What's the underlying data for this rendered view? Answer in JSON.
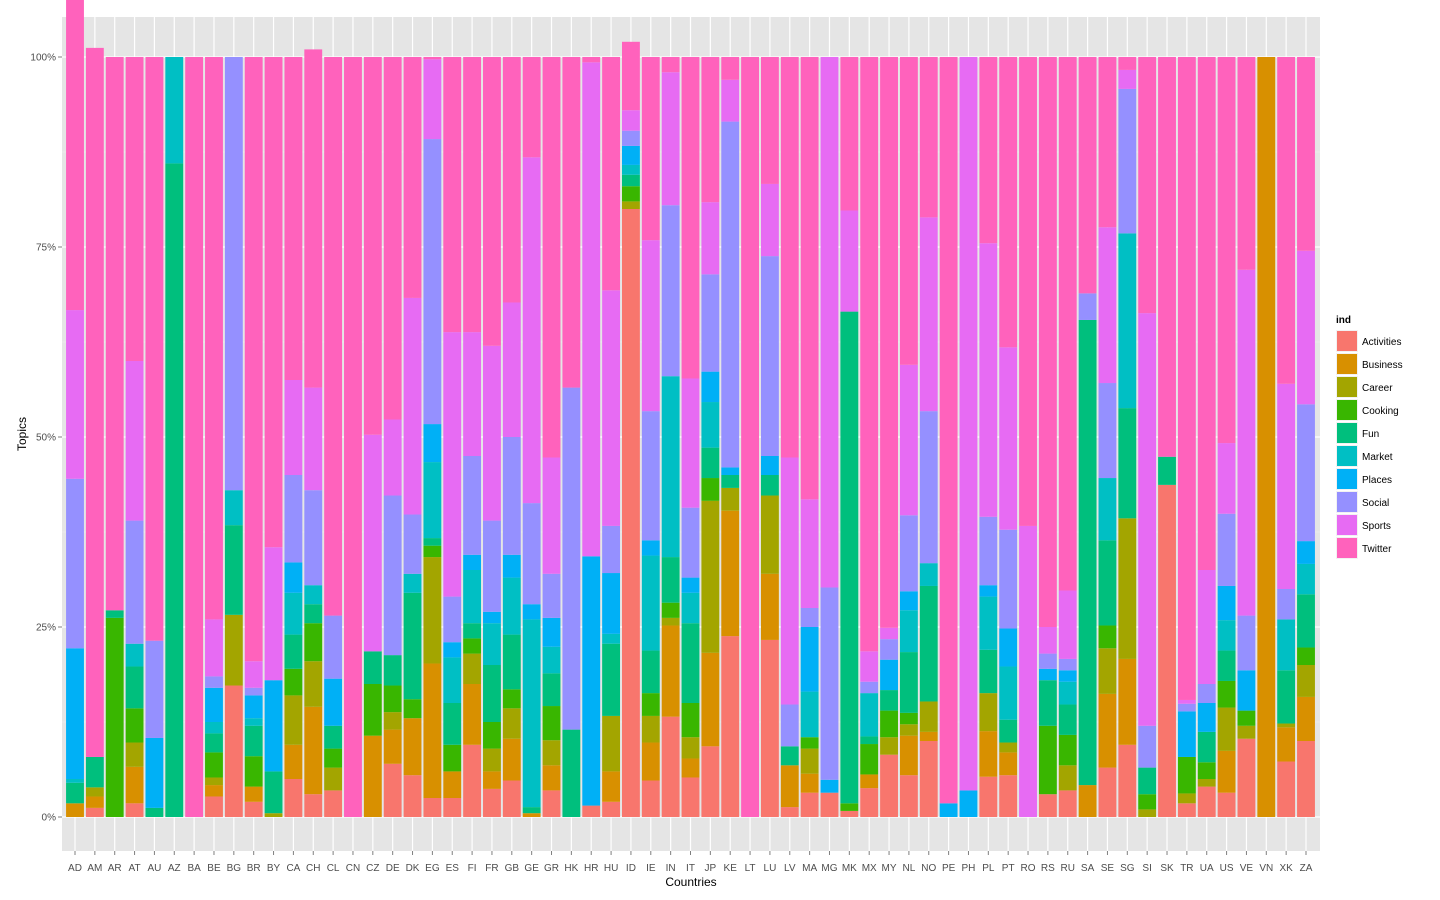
{
  "chart_data": {
    "type": "bar",
    "stacked": true,
    "normalized": true,
    "xlabel": "Countries",
    "ylabel": "Topics",
    "ylim": [
      0,
      1
    ],
    "yticks": [
      {
        "value": 0,
        "label": "0%"
      },
      {
        "value": 0.25,
        "label": "25%"
      },
      {
        "value": 0.5,
        "label": "50%"
      },
      {
        "value": 0.75,
        "label": "75%"
      },
      {
        "value": 1,
        "label": "100%"
      }
    ],
    "grid": true,
    "legend": {
      "title": "ind",
      "position": "right"
    },
    "categories": [
      "AD",
      "AM",
      "AR",
      "AT",
      "AU",
      "AZ",
      "BA",
      "BE",
      "BG",
      "BR",
      "BY",
      "CA",
      "CH",
      "CL",
      "CN",
      "CZ",
      "DE",
      "DK",
      "EG",
      "ES",
      "FI",
      "FR",
      "GB",
      "GE",
      "GR",
      "HK",
      "HR",
      "HU",
      "ID",
      "IE",
      "IN",
      "IT",
      "JP",
      "KE",
      "LT",
      "LU",
      "LV",
      "MA",
      "MG",
      "MK",
      "MX",
      "MY",
      "NL",
      "NO",
      "PE",
      "PH",
      "PL",
      "PT",
      "RO",
      "RS",
      "RU",
      "SA",
      "SE",
      "SG",
      "SI",
      "SK",
      "TR",
      "UA",
      "US",
      "VE",
      "VN",
      "XK",
      "ZA"
    ],
    "series": [
      {
        "name": "Activities",
        "color": "#F8766D",
        "values": [
          0.0,
          0.012,
          0.0,
          0.018,
          0.0,
          0.0,
          0.0,
          0.027,
          0.173,
          0.02,
          0.0,
          0.05,
          0.03,
          0.035,
          0.0,
          0.0,
          0.07,
          0.055,
          0.025,
          0.025,
          0.095,
          0.037,
          0.048,
          0.0,
          0.035,
          0.0,
          0.015,
          0.02,
          0.8,
          0.048,
          0.132,
          0.052,
          0.093,
          0.238,
          0.0,
          0.233,
          0.013,
          0.032,
          0.032,
          0.008,
          0.038,
          0.082,
          0.055,
          0.1,
          0.0,
          0.0,
          0.053,
          0.055,
          0.0,
          0.03,
          0.035,
          0.0,
          0.065,
          0.095,
          0.0,
          0.437,
          0.018,
          0.04,
          0.032,
          0.103,
          0.0,
          0.073,
          0.1
        ]
      },
      {
        "name": "Business",
        "color": "#D89000",
        "values": [
          0.018,
          0.015,
          0.0,
          0.048,
          0.0,
          0.0,
          0.0,
          0.015,
          0.0,
          0.02,
          0.0,
          0.045,
          0.115,
          0.0,
          0.0,
          0.107,
          0.045,
          0.075,
          0.177,
          0.035,
          0.08,
          0.023,
          0.055,
          0.005,
          0.033,
          0.0,
          0.0,
          0.04,
          0.0,
          0.05,
          0.12,
          0.025,
          0.123,
          0.165,
          0.0,
          0.087,
          0.055,
          0.025,
          0.0,
          0.0,
          0.018,
          0.0,
          0.052,
          0.012,
          0.0,
          0.0,
          0.06,
          0.03,
          0.0,
          0.0,
          0.0,
          0.042,
          0.097,
          0.113,
          0.0,
          0.0,
          0.0,
          0.0,
          0.055,
          0.0,
          1.0,
          0.045,
          0.058
        ]
      },
      {
        "name": "Career",
        "color": "#A3A500",
        "values": [
          0.0,
          0.012,
          0.0,
          0.032,
          0.0,
          0.0,
          0.0,
          0.01,
          0.093,
          0.0,
          0.005,
          0.065,
          0.06,
          0.03,
          0.0,
          0.0,
          0.023,
          0.0,
          0.14,
          0.0,
          0.04,
          0.03,
          0.04,
          0.0,
          0.033,
          0.0,
          0.0,
          0.073,
          0.01,
          0.035,
          0.01,
          0.028,
          0.2,
          0.03,
          0.0,
          0.103,
          0.0,
          0.033,
          0.0,
          0.0,
          0.0,
          0.023,
          0.015,
          0.04,
          0.0,
          0.0,
          0.05,
          0.013,
          0.0,
          0.0,
          0.033,
          0.0,
          0.06,
          0.185,
          0.01,
          0.0,
          0.013,
          0.01,
          0.057,
          0.017,
          0.0,
          0.005,
          0.042
        ]
      },
      {
        "name": "Cooking",
        "color": "#39B600",
        "values": [
          0.0,
          0.0,
          0.262,
          0.045,
          0.0,
          0.0,
          0.0,
          0.033,
          0.0,
          0.04,
          0.0,
          0.035,
          0.05,
          0.025,
          0.0,
          0.068,
          0.035,
          0.025,
          0.015,
          0.035,
          0.02,
          0.035,
          0.025,
          0.0,
          0.045,
          0.0,
          0.0,
          0.0,
          0.02,
          0.03,
          0.02,
          0.045,
          0.03,
          0.0,
          0.0,
          0.0,
          0.0,
          0.015,
          0.0,
          0.01,
          0.04,
          0.035,
          0.015,
          0.0,
          0.0,
          0.0,
          0.0,
          0.0,
          0.0,
          0.09,
          0.04,
          0.0,
          0.03,
          0.0,
          0.02,
          0.0,
          0.048,
          0.022,
          0.035,
          0.02,
          0.0,
          0.0,
          0.023
        ]
      },
      {
        "name": "Fun",
        "color": "#00BF7D",
        "values": [
          0.027,
          0.04,
          0.01,
          0.055,
          0.012,
          0.86,
          0.0,
          0.025,
          0.118,
          0.04,
          0.055,
          0.045,
          0.025,
          0.03,
          0.0,
          0.043,
          0.04,
          0.14,
          0.01,
          0.055,
          0.02,
          0.075,
          0.072,
          0.008,
          0.043,
          0.115,
          0.0,
          0.095,
          0.015,
          0.056,
          0.06,
          0.105,
          0.04,
          0.017,
          0.0,
          0.027,
          0.025,
          0.0,
          0.0,
          0.647,
          0.01,
          0.027,
          0.08,
          0.152,
          0.0,
          0.0,
          0.057,
          0.03,
          0.0,
          0.06,
          0.04,
          0.612,
          0.112,
          0.145,
          0.035,
          0.037,
          0.0,
          0.04,
          0.04,
          0.0,
          0.0,
          0.07,
          0.07
        ]
      },
      {
        "name": "Market",
        "color": "#00BFC4",
        "values": [
          0.005,
          0.0,
          0.0,
          0.03,
          0.0,
          0.14,
          0.0,
          0.015,
          0.046,
          0.01,
          0.0,
          0.055,
          0.025,
          0.0,
          0.0,
          0.0,
          0.0,
          0.025,
          0.1,
          0.06,
          0.07,
          0.055,
          0.075,
          0.247,
          0.035,
          0.0,
          0.0,
          0.013,
          0.013,
          0.125,
          0.238,
          0.04,
          0.06,
          0.0,
          0.0,
          0.0,
          0.0,
          0.06,
          0.0,
          0.0,
          0.057,
          0.0,
          0.055,
          0.03,
          0.0,
          0.0,
          0.07,
          0.07,
          0.0,
          0.0,
          0.03,
          0.0,
          0.082,
          0.23,
          0.0,
          0.0,
          0.0,
          0.0,
          0.04,
          0.0,
          0.0,
          0.067,
          0.04
        ]
      },
      {
        "name": "Places",
        "color": "#00B0F6",
        "values": [
          0.172,
          0.0,
          0.0,
          0.0,
          0.092,
          0.0,
          0.0,
          0.045,
          0.0,
          0.03,
          0.12,
          0.04,
          0.0,
          0.062,
          0.0,
          0.0,
          0.0,
          0.0,
          0.05,
          0.02,
          0.02,
          0.015,
          0.03,
          0.02,
          0.038,
          0.0,
          0.328,
          0.08,
          0.025,
          0.02,
          0.0,
          0.02,
          0.04,
          0.01,
          0.0,
          0.025,
          0.0,
          0.085,
          0.017,
          0.0,
          0.0,
          0.04,
          0.025,
          0.0,
          0.018,
          0.035,
          0.015,
          0.05,
          0.0,
          0.015,
          0.015,
          0.0,
          0.0,
          0.0,
          0.0,
          0.0,
          0.06,
          0.038,
          0.045,
          0.053,
          0.0,
          0.0,
          0.03
        ]
      },
      {
        "name": "Social",
        "color": "#9590FF",
        "values": [
          0.223,
          0.0,
          0.0,
          0.162,
          0.128,
          0.0,
          0.0,
          0.015,
          0.57,
          0.01,
          0.0,
          0.115,
          0.125,
          0.083,
          0.0,
          0.0,
          0.21,
          0.078,
          0.375,
          0.06,
          0.13,
          0.12,
          0.155,
          0.133,
          0.058,
          0.45,
          0.0,
          0.062,
          0.02,
          0.17,
          0.225,
          0.092,
          0.128,
          0.455,
          0.0,
          0.263,
          0.055,
          0.025,
          0.253,
          0.0,
          0.015,
          0.027,
          0.1,
          0.2,
          0.0,
          0.0,
          0.09,
          0.13,
          0.0,
          0.02,
          0.015,
          0.035,
          0.125,
          0.19,
          0.055,
          0.0,
          0.01,
          0.025,
          0.095,
          0.072,
          0.0,
          0.04,
          0.18
        ]
      },
      {
        "name": "Sports",
        "color": "#E76BF3",
        "values": [
          0.222,
          0.0,
          0.0,
          0.21,
          0.0,
          0.0,
          0.0,
          0.075,
          0.0,
          0.035,
          0.175,
          0.125,
          0.135,
          0.0,
          0.0,
          0.285,
          0.1,
          0.285,
          0.105,
          0.348,
          0.163,
          0.23,
          0.177,
          0.455,
          0.153,
          0.0,
          0.65,
          0.31,
          0.027,
          0.225,
          0.175,
          0.17,
          0.095,
          0.055,
          0.0,
          0.095,
          0.325,
          0.143,
          0.698,
          0.133,
          0.04,
          0.015,
          0.198,
          0.255,
          0.0,
          0.965,
          0.36,
          0.24,
          0.383,
          0.035,
          0.09,
          0.0,
          0.205,
          0.025,
          0.543,
          0.0,
          0.005,
          0.15,
          0.093,
          0.455,
          0.0,
          0.27,
          0.202
        ]
      },
      {
        "name": "Twitter",
        "color": "#FF62BC",
        "values": [
          0.553,
          0.933,
          0.728,
          0.4,
          0.768,
          0.0,
          1.0,
          0.74,
          0.0,
          0.795,
          0.645,
          0.425,
          0.445,
          0.735,
          1.0,
          0.497,
          0.477,
          0.317,
          0.003,
          0.362,
          0.362,
          0.38,
          0.323,
          0.132,
          0.527,
          0.435,
          0.007,
          0.307,
          0.09,
          0.241,
          0.02,
          0.423,
          0.191,
          0.03,
          1.0,
          0.167,
          0.527,
          0.582,
          0.0,
          0.202,
          0.782,
          0.751,
          0.405,
          0.211,
          0.982,
          0.0,
          0.245,
          0.382,
          0.617,
          0.75,
          0.702,
          0.311,
          0.224,
          0.017,
          0.337,
          0.526,
          0.846,
          0.675,
          0.508,
          0.28,
          0.0,
          0.43,
          0.255
        ]
      }
    ]
  }
}
